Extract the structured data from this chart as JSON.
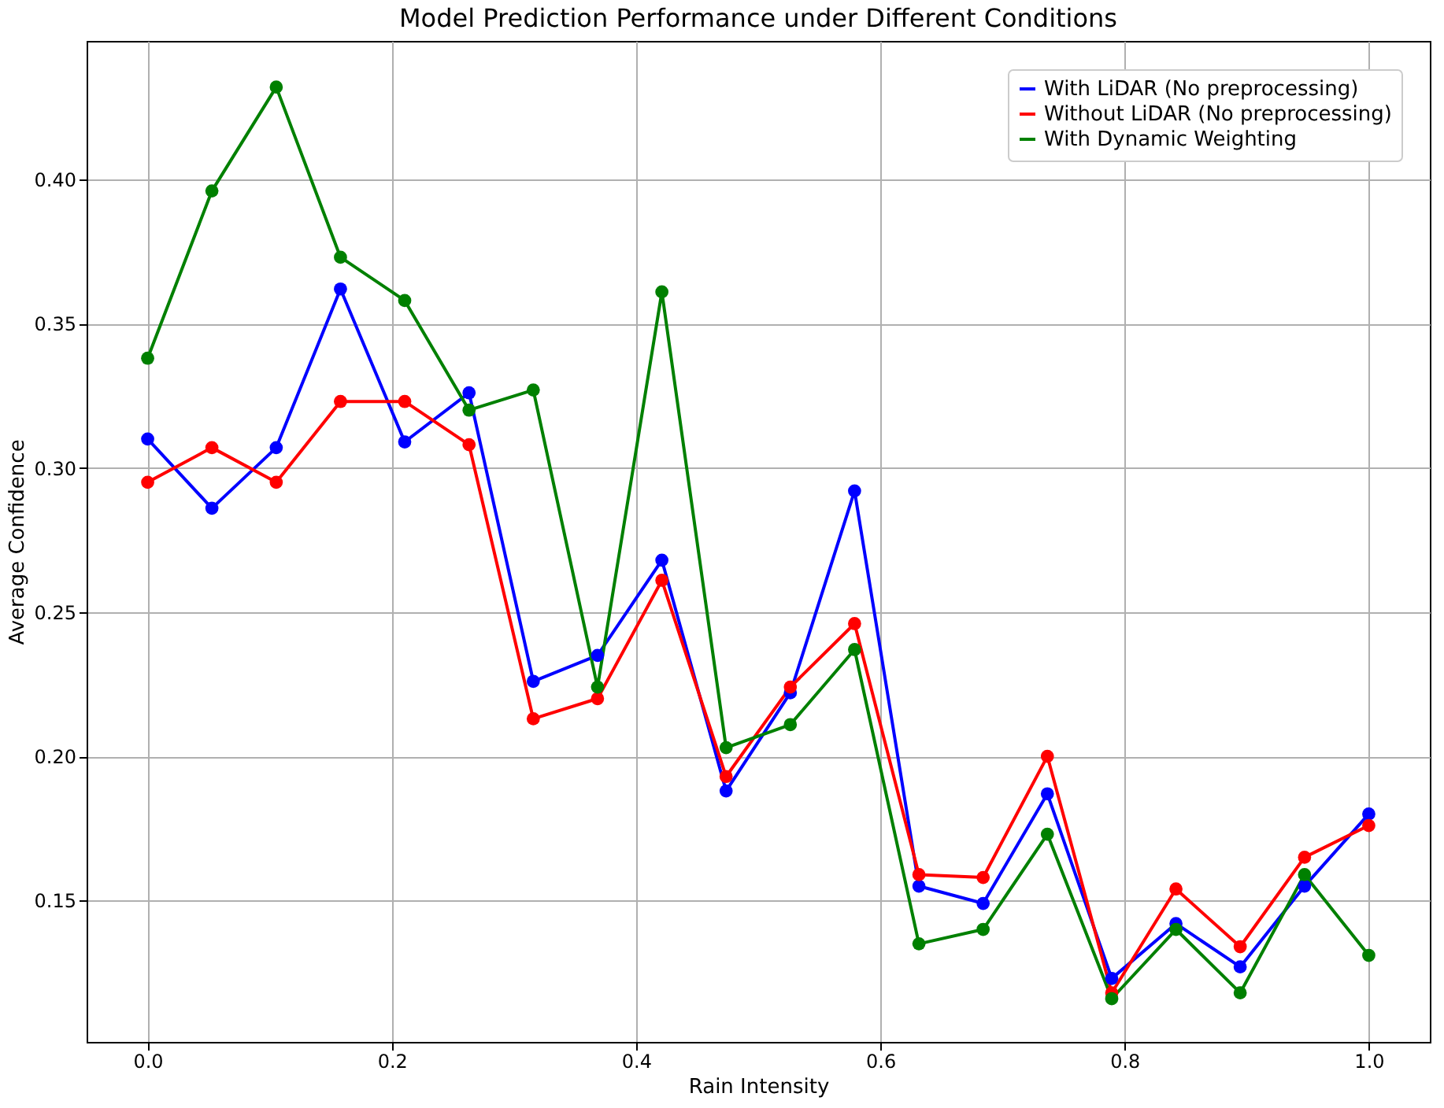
{
  "chart_data": {
    "type": "line",
    "title": "Model Prediction Performance under Different Conditions",
    "xlabel": "Rain Intensity",
    "ylabel": "Average Confidence",
    "x": [
      0,
      0.0526,
      0.1053,
      0.1579,
      0.2105,
      0.2632,
      0.3158,
      0.3684,
      0.4211,
      0.4737,
      0.5263,
      0.5789,
      0.6316,
      0.6842,
      0.7368,
      0.7895,
      0.8421,
      0.8947,
      0.9474,
      1
    ],
    "series": [
      {
        "name": "With LiDAR (No preprocessing)",
        "color": "#0000ff",
        "values": [
          0.31,
          0.286,
          0.307,
          0.362,
          0.309,
          0.326,
          0.226,
          0.235,
          0.268,
          0.188,
          0.222,
          0.292,
          0.155,
          0.149,
          0.187,
          0.123,
          0.142,
          0.127,
          0.155,
          0.18
        ]
      },
      {
        "name": "Without LiDAR (No preprocessing)",
        "color": "#ff0000",
        "values": [
          0.295,
          0.307,
          0.295,
          0.323,
          0.323,
          0.308,
          0.213,
          0.22,
          0.261,
          0.193,
          0.224,
          0.246,
          0.159,
          0.158,
          0.2,
          0.118,
          0.154,
          0.134,
          0.165,
          0.176
        ]
      },
      {
        "name": "With Dynamic Weighting",
        "color": "#008000",
        "values": [
          0.338,
          0.396,
          0.432,
          0.373,
          0.358,
          0.32,
          0.327,
          0.224,
          0.361,
          0.203,
          0.211,
          0.237,
          0.135,
          0.14,
          0.173,
          0.116,
          0.14,
          0.118,
          0.159,
          0.131
        ]
      }
    ],
    "xlim": [
      -0.05,
      1.05
    ],
    "ylim": [
      0.101,
      0.448
    ],
    "xticks": [
      {
        "value": 0,
        "label": "0.0"
      },
      {
        "value": 0.2,
        "label": "0.2"
      },
      {
        "value": 0.4,
        "label": "0.4"
      },
      {
        "value": 0.6,
        "label": "0.6"
      },
      {
        "value": 0.8,
        "label": "0.8"
      },
      {
        "value": 1,
        "label": "1.0"
      }
    ],
    "yticks": [
      {
        "value": 0.15,
        "label": "0.15"
      },
      {
        "value": 0.2,
        "label": "0.20"
      },
      {
        "value": 0.25,
        "label": "0.25"
      },
      {
        "value": 0.3,
        "label": "0.30"
      },
      {
        "value": 0.35,
        "label": "0.35"
      },
      {
        "value": 0.4,
        "label": "0.40"
      }
    ],
    "grid": true,
    "legend": "top right",
    "marker": "circle",
    "line_style": "solid"
  }
}
